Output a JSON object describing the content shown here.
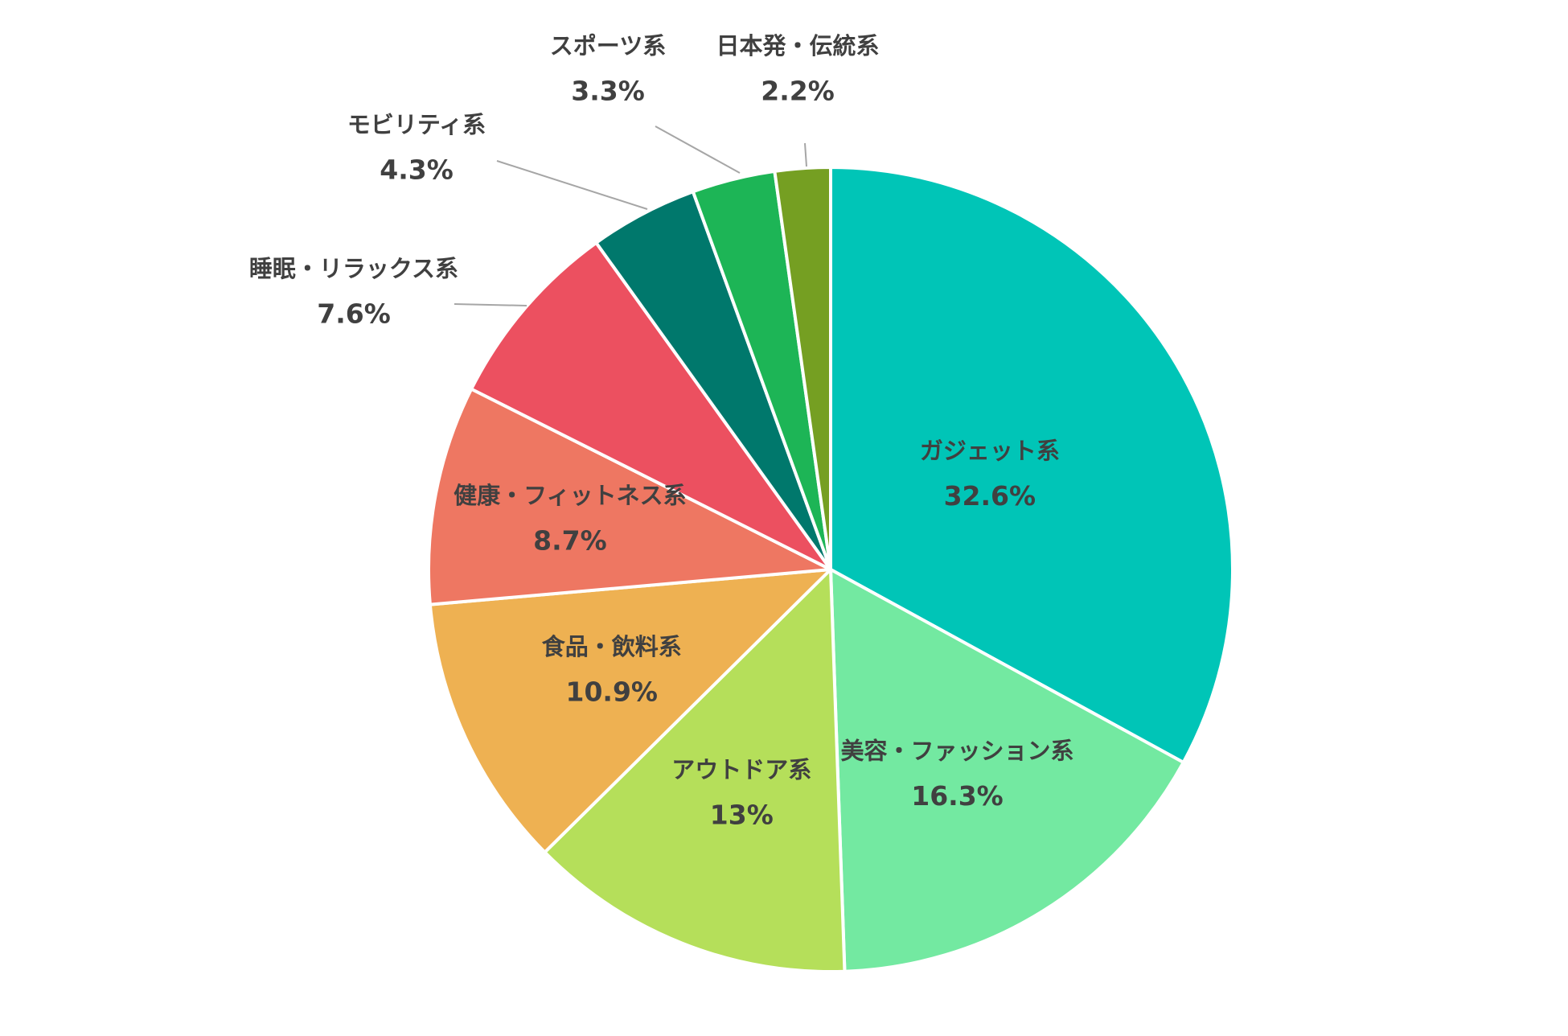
{
  "chart_data": {
    "type": "pie",
    "start_angle_deg": 0,
    "direction": "clockwise",
    "slices": [
      {
        "label": "ガジェット系",
        "value": 32.6,
        "value_label": "32.6%",
        "color": "#00c5b7",
        "label_position": "inside"
      },
      {
        "label": "美容・ファッション系",
        "value": 16.3,
        "value_label": "16.3%",
        "color": "#73e9a1",
        "label_position": "inside"
      },
      {
        "label": "アウトドア系",
        "value": 13,
        "value_label": "13%",
        "color": "#b5df5a",
        "label_position": "inside"
      },
      {
        "label": "食品・飲料系",
        "value": 10.9,
        "value_label": "10.9%",
        "color": "#eeb152",
        "label_position": "inside"
      },
      {
        "label": "健康・フィットネス系",
        "value": 8.7,
        "value_label": "8.7%",
        "color": "#ee7762",
        "label_position": "inside"
      },
      {
        "label": "睡眠・リラックス系",
        "value": 7.6,
        "value_label": "7.6%",
        "color": "#ec5060",
        "label_position": "outside"
      },
      {
        "label": "モビリティ系",
        "value": 4.3,
        "value_label": "4.3%",
        "color": "#00786c",
        "label_position": "outside"
      },
      {
        "label": "スポーツ系",
        "value": 3.3,
        "value_label": "3.3%",
        "color": "#1db556",
        "label_position": "outside"
      },
      {
        "label": "日本発・伝統系",
        "value": 2.2,
        "value_label": "2.2%",
        "color": "#759f22",
        "label_position": "outside"
      }
    ]
  }
}
